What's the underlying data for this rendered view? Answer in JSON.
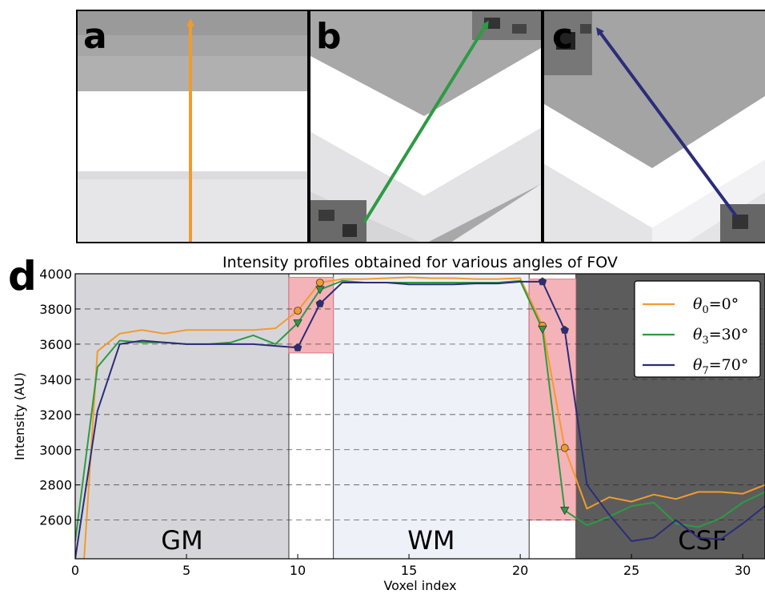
{
  "panels": [
    {
      "letter": "a",
      "arrow_color": "#f39a2e"
    },
    {
      "letter": "b",
      "arrow_color": "#2e9a44"
    },
    {
      "letter": "c",
      "arrow_color": "#2c2c7a"
    }
  ],
  "chart_letter": "d",
  "chart_data": {
    "type": "line",
    "title": "Intensity profiles obtained for various angles of FOV",
    "xlabel": "Voxel index",
    "ylabel": "Intensity (AU)",
    "xlim": [
      0,
      31
    ],
    "ylim": [
      2380,
      4000
    ],
    "xticks": [
      0,
      5,
      10,
      15,
      20,
      25,
      30
    ],
    "yticks": [
      2600,
      2800,
      3000,
      3200,
      3400,
      3600,
      3800,
      4000
    ],
    "grid": "horizontal-dashed",
    "legend_position": "top-right",
    "regions": [
      {
        "label": "GM",
        "x0": 0,
        "x1": 9.6,
        "color": "#d6d6da"
      },
      {
        "label": "",
        "x0": 9.6,
        "x1": 11.6,
        "color": "#ffffff"
      },
      {
        "label": "WM",
        "x0": 11.6,
        "x1": 20.4,
        "color": "#eef1f8"
      },
      {
        "label": "",
        "x0": 20.4,
        "x1": 22.5,
        "color": "#ffffff"
      },
      {
        "label": "CSF",
        "x0": 22.5,
        "x1": 31,
        "color": "#5c5c5c"
      }
    ],
    "highlights": [
      {
        "x0": 9.6,
        "x1": 11.6,
        "y0": 3550,
        "y1": 3980,
        "color": "#f2a6ac"
      },
      {
        "x0": 20.4,
        "x1": 22.5,
        "y0": 2600,
        "y1": 3970,
        "color": "#f2a6ac"
      }
    ],
    "series": [
      {
        "name": "θ0=0°",
        "legend_main": "θ",
        "legend_sub": "0",
        "legend_rest": "=0°",
        "color": "#f39a2e",
        "marker": "circle",
        "x": [
          0,
          0.4,
          1,
          2,
          3,
          4,
          5,
          6,
          7,
          8,
          9,
          10,
          11,
          12,
          13,
          14,
          15,
          16,
          17,
          18,
          19,
          20,
          21,
          22,
          23,
          24,
          25,
          26,
          27,
          28,
          29,
          30,
          31
        ],
        "y": [
          2200,
          2380,
          3560,
          3660,
          3680,
          3660,
          3680,
          3680,
          3680,
          3680,
          3690,
          3790,
          3950,
          3970,
          3970,
          3975,
          3980,
          3975,
          3975,
          3970,
          3970,
          3975,
          3705,
          3010,
          2665,
          2730,
          2705,
          2745,
          2720,
          2760,
          2760,
          2750,
          2800
        ],
        "marker_x": [
          10,
          11,
          21,
          22
        ]
      },
      {
        "name": "θ3=30°",
        "legend_main": "θ",
        "legend_sub": "3",
        "legend_rest": "=30°",
        "color": "#2e9a44",
        "marker": "triangle",
        "x": [
          0,
          1,
          2,
          3,
          4,
          5,
          6,
          7,
          8,
          9,
          10,
          11,
          12,
          13,
          14,
          15,
          16,
          17,
          18,
          19,
          20,
          21,
          22,
          23,
          24,
          25,
          26,
          27,
          28,
          29,
          30,
          31
        ],
        "y": [
          2480,
          3470,
          3620,
          3610,
          3610,
          3600,
          3600,
          3610,
          3650,
          3600,
          3720,
          3910,
          3960,
          3950,
          3950,
          3950,
          3950,
          3950,
          3950,
          3950,
          3960,
          3685,
          2655,
          2570,
          2620,
          2680,
          2700,
          2580,
          2560,
          2610,
          2700,
          2760
        ],
        "marker_x": [
          10,
          11,
          21,
          22
        ]
      },
      {
        "name": "θ7=70°",
        "legend_main": "θ",
        "legend_sub": "7",
        "legend_rest": "=70°",
        "color": "#2c2c7a",
        "marker": "pentagon",
        "x": [
          0,
          1,
          2,
          3,
          4,
          5,
          6,
          7,
          8,
          9,
          10,
          11,
          12,
          13,
          14,
          15,
          16,
          17,
          18,
          19,
          20,
          21,
          22,
          23,
          24,
          25,
          26,
          27,
          28,
          29,
          30,
          31
        ],
        "y": [
          2380,
          3220,
          3600,
          3620,
          3610,
          3600,
          3600,
          3600,
          3600,
          3590,
          3580,
          3830,
          3950,
          3950,
          3950,
          3940,
          3940,
          3940,
          3945,
          3945,
          3955,
          3955,
          3680,
          2800,
          2630,
          2480,
          2500,
          2600,
          2500,
          2490,
          2580,
          2680
        ],
        "marker_x": [
          10,
          11,
          21,
          22
        ]
      }
    ]
  }
}
